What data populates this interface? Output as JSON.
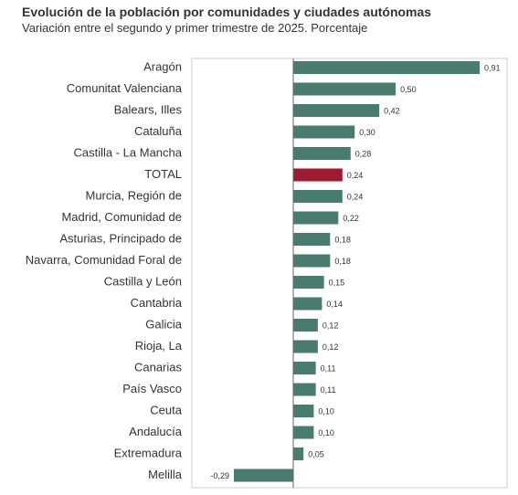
{
  "chart_data": {
    "type": "bar",
    "orientation": "horizontal",
    "title": "Evolución de la población por comunidades y ciudades autónomas",
    "subtitle": "Variación entre el segundo y primer trimestre de 2025. Porcentaje",
    "categories": [
      "Aragón",
      "Comunitat Valenciana",
      "Balears, Illes",
      "Cataluña",
      "Castilla - La Mancha",
      "TOTAL",
      "Murcia, Región de",
      "Madrid, Comunidad de",
      "Asturias, Principado de",
      "Navarra, Comunidad Foral de",
      "Castilla y León",
      "Cantabria",
      "Galicia",
      "Rioja, La",
      "Canarias",
      "País Vasco",
      "Ceuta",
      "Andalucía",
      "Extremadura",
      "Melilla"
    ],
    "values": [
      0.91,
      0.5,
      0.42,
      0.3,
      0.28,
      0.24,
      0.24,
      0.22,
      0.18,
      0.18,
      0.15,
      0.14,
      0.12,
      0.12,
      0.11,
      0.11,
      0.1,
      0.1,
      0.05,
      -0.29
    ],
    "value_labels": [
      "0,91",
      "0,50",
      "0,42",
      "0,30",
      "0,28",
      "0,24",
      "0,24",
      "0,22",
      "0,18",
      "0,18",
      "0,15",
      "0,14",
      "0,12",
      "0,12",
      "0,11",
      "0,11",
      "0,10",
      "0,10",
      "0,05",
      "-0,29"
    ],
    "highlight_category": "TOTAL",
    "colors": {
      "bar": "#4a7b6f",
      "highlight": "#9b1b30",
      "axis": "#666666",
      "frame": "#cccccc"
    },
    "grid": false,
    "legend": "none"
  }
}
